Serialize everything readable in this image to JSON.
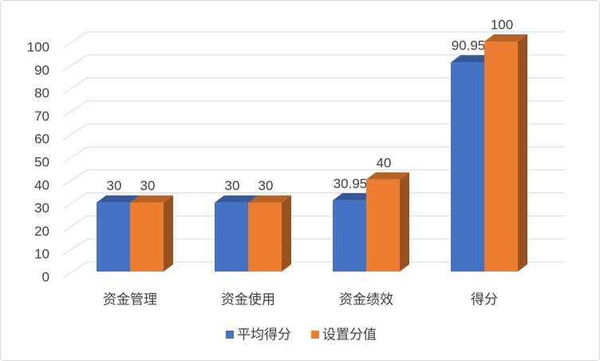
{
  "chart_data": {
    "type": "bar3d",
    "categories": [
      "资金管理",
      "资金使用",
      "资金绩效",
      "得分"
    ],
    "series": [
      {
        "name": "平均得分",
        "color": "#4472c4",
        "values": [
          30,
          30,
          30.95,
          90.95
        ]
      },
      {
        "name": "设置分值",
        "color": "#ed7d31",
        "values": [
          30,
          30,
          40,
          100
        ]
      }
    ],
    "ylim": [
      0,
      100
    ],
    "yticks": [
      0,
      10,
      20,
      30,
      40,
      50,
      60,
      70,
      80,
      90,
      100
    ],
    "grid": true,
    "legend": "bottom"
  }
}
